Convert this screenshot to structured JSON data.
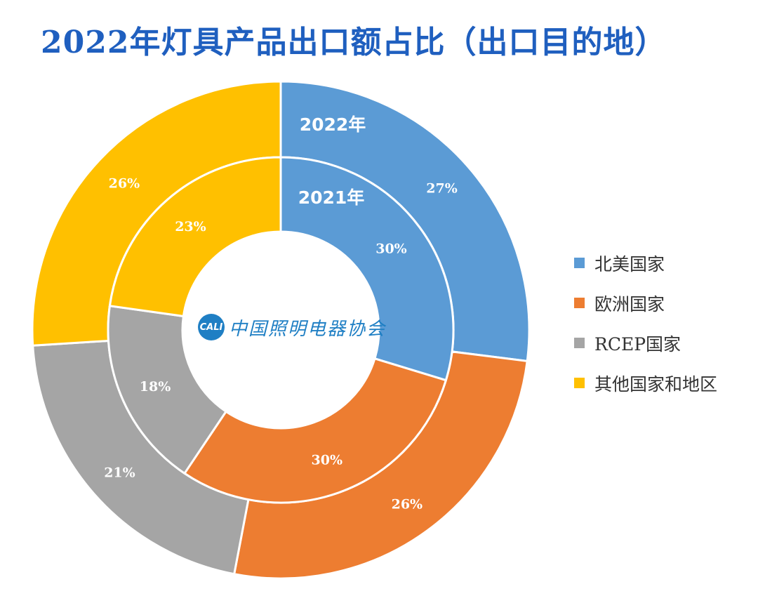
{
  "chart_data": {
    "type": "pie",
    "title": "2022年灯具产品出口额占比（出口目的地）",
    "categories": [
      "北美国家",
      "欧洲国家",
      "RCEP国家",
      "其他国家和地区"
    ],
    "colors": [
      "#5b9bd5",
      "#ed7d31",
      "#a5a5a5",
      "#ffc000"
    ],
    "series": [
      {
        "name": "2022年",
        "values": [
          27,
          26,
          21,
          26
        ],
        "labels": [
          "27%",
          "26%",
          "21%",
          "26%"
        ]
      },
      {
        "name": "2021年",
        "values": [
          30,
          30,
          18,
          23
        ],
        "labels": [
          "30%",
          "30%",
          "18%",
          "23%"
        ]
      }
    ],
    "legend_position": "right"
  },
  "logo": {
    "mark": "CALI",
    "text": "中国照明电器协会"
  }
}
